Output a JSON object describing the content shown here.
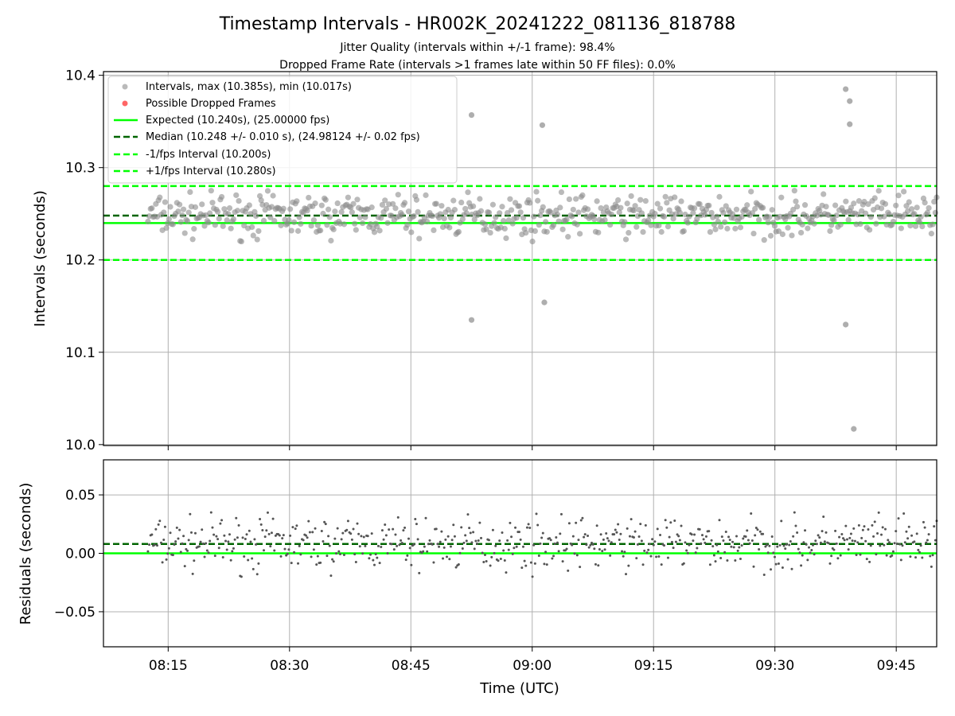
{
  "chart_data": [
    {
      "type": "scatter",
      "title": "Timestamp Intervals - HR002K_20241222_081136_818788",
      "subtitle_lines": [
        "Jitter Quality (intervals within +/-1 frame): 98.4%",
        "Dropped Frame Rate (intervals >1 frames late within 50 FF files): 0.0%"
      ],
      "xlabel": "",
      "ylabel": "Intervals (seconds)",
      "xlim": [
        "08:07",
        "09:50"
      ],
      "ylim": [
        9.999,
        10.404
      ],
      "x_ticks": [
        "08:15",
        "08:30",
        "08:45",
        "09:00",
        "09:15",
        "09:30",
        "09:45"
      ],
      "y_ticks": [
        10.0,
        10.1,
        10.2,
        10.3,
        10.4
      ],
      "y_tick_labels": [
        "10.0",
        "10.1",
        "10.2",
        "10.3",
        "10.4"
      ],
      "grid": true,
      "legend_position": "top-left",
      "legend": [
        "Intervals, max (10.385s), min (10.017s)",
        "Possible Dropped Frames",
        "Expected (10.240s), (25.00000 fps)",
        "Median (10.248 +/- 0.010 s), (24.98124 +/- 0.02 fps)",
        "-1/fps Interval (10.200s)",
        "+1/fps Interval (10.280s)"
      ],
      "lines": {
        "expected": 10.24,
        "median": 10.248,
        "minus_one_fps": 10.2,
        "plus_one_fps": 10.28
      },
      "series": [
        {
          "name": "Intervals, max (10.385s), min (10.017s)",
          "time_range": [
            "08:12:30",
            "09:50:00"
          ],
          "typical_range": [
            10.22,
            10.275
          ],
          "points_approx": 600,
          "outliers": [
            {
              "x": "08:52:30",
              "y": 10.357
            },
            {
              "x": "08:52:30",
              "y": 10.135
            },
            {
              "x": "09:01:15",
              "y": 10.346
            },
            {
              "x": "09:01:30",
              "y": 10.154
            },
            {
              "x": "09:38:45",
              "y": 10.385
            },
            {
              "x": "09:39:15",
              "y": 10.372
            },
            {
              "x": "09:39:15",
              "y": 10.347
            },
            {
              "x": "09:38:45",
              "y": 10.13
            },
            {
              "x": "09:39:45",
              "y": 10.017
            }
          ]
        },
        {
          "name": "Possible Dropped Frames",
          "points": []
        }
      ],
      "colors": {
        "points": "#8c8c8c",
        "dropped": "#ff6666",
        "expected": "#00ff00",
        "median": "#006400",
        "fps_bounds": "#00ff00"
      }
    },
    {
      "type": "scatter",
      "title": "",
      "xlabel": "Time (UTC)",
      "ylabel": "Residuals (seconds)",
      "xlim": [
        "08:07",
        "09:50"
      ],
      "ylim": [
        -0.08,
        0.08
      ],
      "x_ticks": [
        "08:15",
        "08:30",
        "08:45",
        "09:00",
        "09:15",
        "09:30",
        "09:45"
      ],
      "y_ticks": [
        -0.05,
        0.0,
        0.05
      ],
      "y_tick_labels": [
        "−0.05",
        "0.00",
        "0.05"
      ],
      "grid": true,
      "lines": {
        "zero": 0.0,
        "median_offset": 0.008
      },
      "series": [
        {
          "time_range": [
            "08:12:30",
            "09:50:00"
          ],
          "typical_range": [
            -0.02,
            0.035
          ],
          "points_approx": 600
        }
      ]
    }
  ]
}
